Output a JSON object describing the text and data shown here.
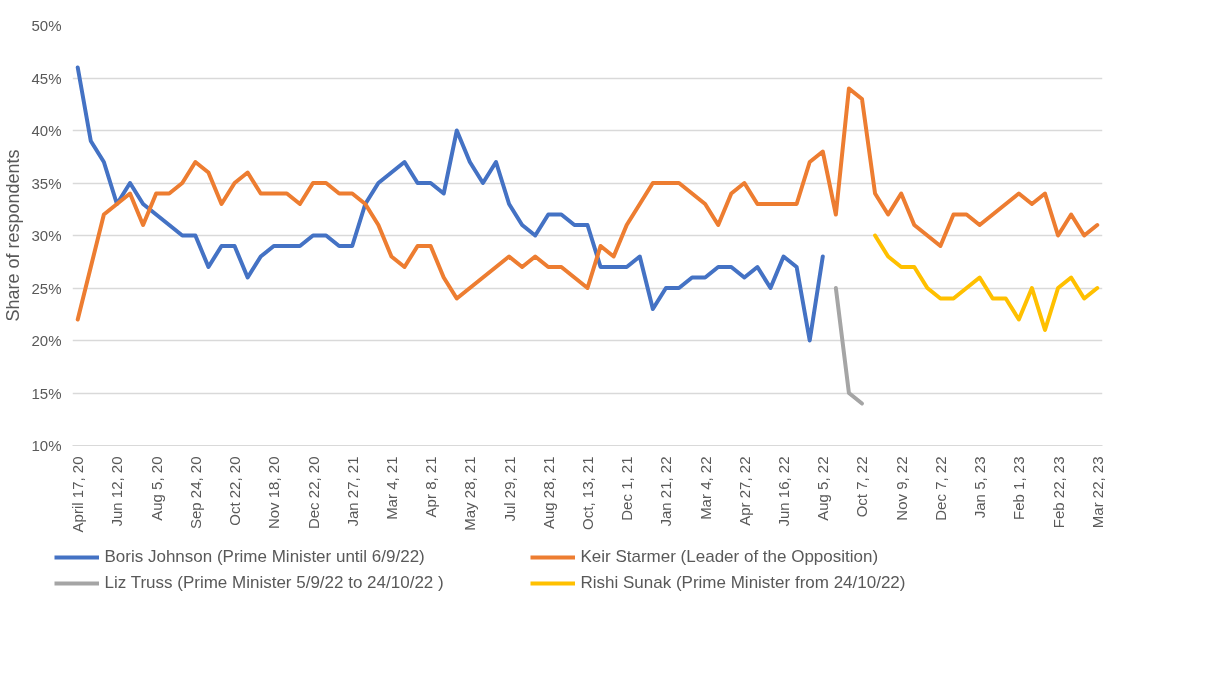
{
  "chart_data": {
    "type": "line",
    "ylabel": "Share of respondents",
    "categories": [
      "April 17, 20",
      null,
      null,
      "Jun 12, 20",
      null,
      null,
      "Aug 5, 20",
      null,
      null,
      "Sep 24, 20",
      null,
      null,
      "Oct 22, 20",
      null,
      null,
      "Nov 18, 20",
      null,
      null,
      "Dec 22, 20",
      null,
      null,
      "Jan 27, 21",
      null,
      null,
      "Mar 4, 21",
      null,
      null,
      "Apr 8, 21",
      null,
      null,
      "May 28, 21",
      null,
      null,
      "Jul 29, 21",
      null,
      null,
      "Aug 28, 21",
      null,
      null,
      "Oct, 13, 21",
      null,
      null,
      "Dec 1, 21",
      null,
      null,
      "Jan 21, 22",
      null,
      null,
      "Mar 4, 22",
      null,
      null,
      "Apr 27, 22",
      null,
      null,
      "Jun 16, 22",
      null,
      null,
      "Aug 5, 22",
      null,
      null,
      "Oct 7, 22",
      null,
      null,
      "Nov 9, 22",
      null,
      null,
      "Dec 7, 22",
      null,
      null,
      "Jan 5, 23",
      null,
      null,
      "Feb 1, 23",
      null,
      null,
      "Feb 22, 23",
      null,
      null,
      "Mar 22, 23"
    ],
    "series": [
      {
        "name": "Boris Johnson (Prime Minister until 6/9/22)",
        "color": "#4472c4",
        "values": [
          46,
          39,
          37,
          33,
          35,
          33,
          32,
          31,
          30,
          30,
          27,
          29,
          29,
          26,
          28,
          29,
          29,
          29,
          30,
          30,
          29,
          29,
          33,
          35,
          36,
          37,
          35,
          35,
          34,
          40,
          37,
          35,
          37,
          33,
          31,
          30,
          32,
          32,
          31,
          31,
          27,
          27,
          27,
          28,
          23,
          25,
          25,
          26,
          26,
          27,
          27,
          26,
          27,
          25,
          28,
          27,
          20,
          28,
          null,
          null,
          null,
          null,
          null,
          null,
          null,
          null,
          null,
          null,
          null,
          null,
          null,
          null,
          null,
          null,
          null,
          null,
          null,
          null,
          null
        ]
      },
      {
        "name": "Keir Starmer (Leader of the Opposition)",
        "color": "#ed7d31",
        "values": [
          22,
          27,
          32,
          33,
          34,
          31,
          34,
          34,
          35,
          37,
          36,
          33,
          35,
          36,
          34,
          34,
          34,
          33,
          35,
          35,
          34,
          34,
          33,
          31,
          28,
          27,
          29,
          29,
          26,
          24,
          25,
          26,
          27,
          28,
          27,
          28,
          27,
          27,
          26,
          25,
          29,
          28,
          31,
          33,
          35,
          35,
          35,
          34,
          33,
          31,
          34,
          35,
          33,
          33,
          33,
          33,
          37,
          38,
          32,
          44,
          43,
          34,
          32,
          34,
          31,
          30,
          29,
          32,
          32,
          31,
          32,
          33,
          34,
          33,
          34,
          30,
          32,
          30,
          31
        ]
      },
      {
        "name": "Liz Truss (Prime Minister 5/9/22 to 24/10/22 )",
        "color": "#a5a5a5",
        "values": [
          null,
          null,
          null,
          null,
          null,
          null,
          null,
          null,
          null,
          null,
          null,
          null,
          null,
          null,
          null,
          null,
          null,
          null,
          null,
          null,
          null,
          null,
          null,
          null,
          null,
          null,
          null,
          null,
          null,
          null,
          null,
          null,
          null,
          null,
          null,
          null,
          null,
          null,
          null,
          null,
          null,
          null,
          null,
          null,
          null,
          null,
          null,
          null,
          null,
          null,
          null,
          null,
          null,
          null,
          null,
          null,
          null,
          null,
          25,
          15,
          14,
          null,
          null,
          null,
          null,
          null,
          null,
          null,
          null,
          null,
          null,
          null,
          null,
          null,
          null,
          null,
          null,
          null,
          null
        ]
      },
      {
        "name": "Rishi Sunak (Prime Minister from 24/10/22)",
        "color": "#ffc000",
        "values": [
          null,
          null,
          null,
          null,
          null,
          null,
          null,
          null,
          null,
          null,
          null,
          null,
          null,
          null,
          null,
          null,
          null,
          null,
          null,
          null,
          null,
          null,
          null,
          null,
          null,
          null,
          null,
          null,
          null,
          null,
          null,
          null,
          null,
          null,
          null,
          null,
          null,
          null,
          null,
          null,
          null,
          null,
          null,
          null,
          null,
          null,
          null,
          null,
          null,
          null,
          null,
          null,
          null,
          null,
          null,
          null,
          null,
          null,
          null,
          null,
          null,
          30,
          28,
          27,
          27,
          25,
          24,
          24,
          25,
          26,
          24,
          24,
          22,
          25,
          21,
          25,
          26,
          24,
          25
        ]
      }
    ],
    "ylim": [
      10,
      50
    ],
    "yticks": [
      {
        "value": 10,
        "label": "10%"
      },
      {
        "value": 15,
        "label": "15%"
      },
      {
        "value": 20,
        "label": "20%"
      },
      {
        "value": 25,
        "label": "25%"
      },
      {
        "value": 30,
        "label": "30%"
      },
      {
        "value": 35,
        "label": "35%"
      },
      {
        "value": 40,
        "label": "40%"
      },
      {
        "value": 45,
        "label": "45%"
      },
      {
        "value": 50,
        "label": "50%"
      }
    ],
    "grid": "y",
    "legend": "bottom",
    "marker": "none",
    "line_style": "solid"
  }
}
